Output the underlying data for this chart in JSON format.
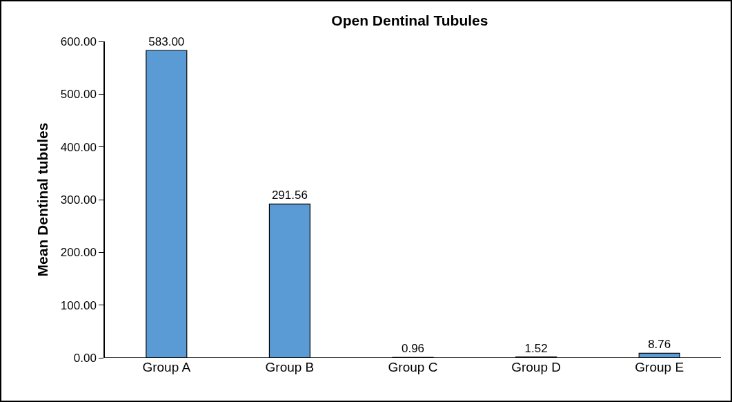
{
  "chart_data": {
    "type": "bar",
    "title": "Open Dentinal Tubules",
    "ylabel": "Mean Dentinal tubules",
    "categories": [
      "Group A",
      "Group B",
      "Group C",
      "Group D",
      "Group E"
    ],
    "values": [
      583.0,
      291.56,
      0.96,
      1.52,
      8.76
    ],
    "value_labels": [
      "583.00",
      "291.56",
      "0.96",
      "1.52",
      "8.76"
    ],
    "color": "#5b9bd5",
    "ylim": [
      0,
      600
    ],
    "yticks": [
      {
        "value": 0,
        "label": "0.00"
      },
      {
        "value": 100,
        "label": "100.00"
      },
      {
        "value": 200,
        "label": "200.00"
      },
      {
        "value": 300,
        "label": "300.00"
      },
      {
        "value": 400,
        "label": "400.00"
      },
      {
        "value": 500,
        "label": "500.00"
      },
      {
        "value": 600,
        "label": "600.00"
      }
    ],
    "grid": false
  }
}
